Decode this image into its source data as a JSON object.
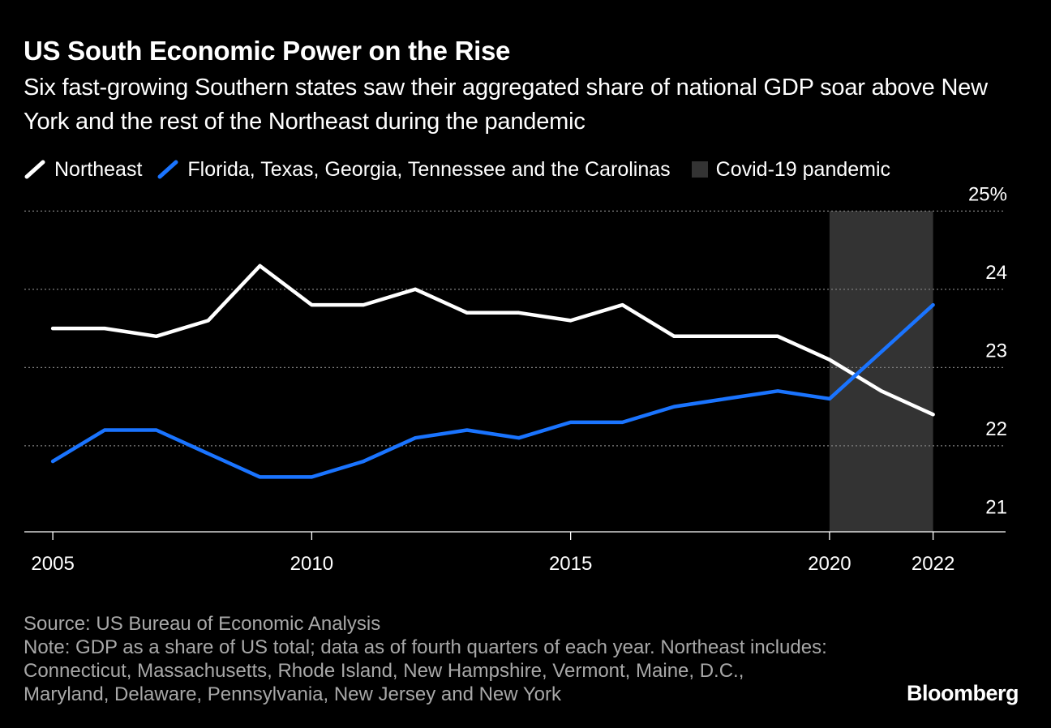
{
  "title": "US South Economic Power on the Rise",
  "subtitle": "Six fast-growing Southern states saw their aggregated share of national GDP soar above New York and the rest of the Northeast during the pandemic",
  "legend": {
    "northeast": "Northeast",
    "south": "Florida, Texas, Georgia, Tennessee and the Carolinas",
    "pandemic": "Covid-19 pandemic"
  },
  "colors": {
    "background": "#000000",
    "northeast": "#ffffff",
    "south": "#1a74ff",
    "pandemic": "#333333",
    "grid": "#808080",
    "footer_text": "#a8a8a8"
  },
  "chart_data": {
    "type": "line",
    "title": "US South Economic Power on the Rise",
    "xlabel": "",
    "ylabel": "",
    "x": [
      2005,
      2006,
      2007,
      2008,
      2009,
      2010,
      2011,
      2012,
      2013,
      2014,
      2015,
      2016,
      2017,
      2018,
      2019,
      2020,
      2021,
      2022
    ],
    "series": [
      {
        "name": "Northeast",
        "values": [
          23.5,
          23.5,
          23.4,
          23.6,
          24.3,
          23.8,
          23.8,
          24.0,
          23.7,
          23.7,
          23.6,
          23.8,
          23.4,
          23.4,
          23.4,
          23.1,
          22.7,
          22.4
        ]
      },
      {
        "name": "Florida, Texas, Georgia, Tennessee and the Carolinas",
        "values": [
          21.8,
          22.2,
          22.2,
          21.9,
          21.6,
          21.6,
          21.8,
          22.1,
          22.2,
          22.1,
          22.3,
          22.3,
          22.5,
          22.6,
          22.7,
          22.6,
          23.2,
          23.8
        ]
      }
    ],
    "shaded_region": {
      "label": "Covid-19 pandemic",
      "x_start": 2020,
      "x_end": 2022
    },
    "ylim": [
      20.9,
      24.9
    ],
    "xlim": [
      2004.45,
      2023.4
    ],
    "y_ticks": [
      21,
      22,
      23,
      24,
      25
    ],
    "y_tick_labels": [
      "21",
      "22",
      "23",
      "24",
      "25%"
    ],
    "x_ticks": [
      2005,
      2010,
      2015,
      2020,
      2022
    ],
    "x_tick_labels": [
      "2005",
      "2010",
      "2015",
      "2020",
      "2022"
    ],
    "grid": true
  },
  "footer": {
    "source": "Source: US Bureau of Economic Analysis",
    "note": "Note: GDP as a share of US total; data as of fourth quarters of each year. Northeast includes: Connecticut, Massachusetts, Rhode Island, New Hampshire, Vermont, Maine, D.C., Maryland, Delaware, Pennsylvania, New Jersey and New York"
  },
  "brand": "Bloomberg"
}
